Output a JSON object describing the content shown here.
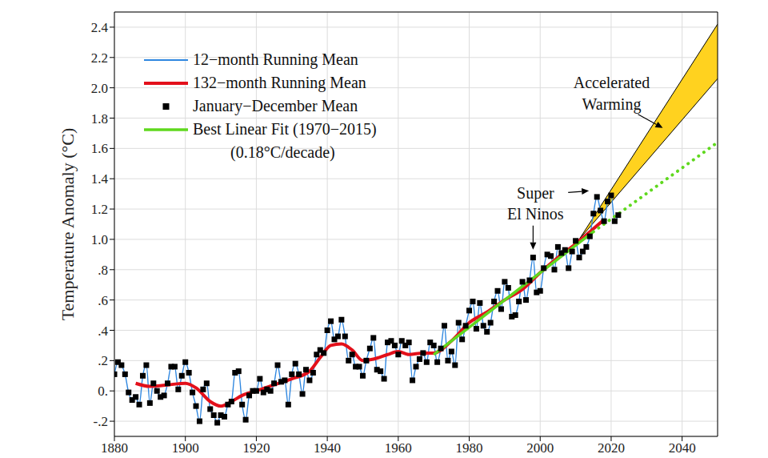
{
  "chart_data": {
    "type": "line",
    "ylabel": "Temperature Anomaly (°C)",
    "xlim": [
      1880,
      2050
    ],
    "xticks": [
      1880,
      1900,
      1920,
      1940,
      1960,
      1980,
      2000,
      2020,
      2040
    ],
    "ylim": [
      -0.3,
      2.5
    ],
    "yticks": [
      {
        "value": -0.2,
        "label": "-.2"
      },
      {
        "value": 0,
        "label": "0."
      },
      {
        "value": 0.2,
        "label": ".2"
      },
      {
        "value": 0.4,
        "label": ".4"
      },
      {
        "value": 0.6,
        "label": ".6"
      },
      {
        "value": 0.8,
        "label": ".8"
      },
      {
        "value": 1.0,
        "label": "1.0"
      },
      1.2,
      1.4,
      1.6,
      1.8,
      {
        "value": 2.0,
        "label": "2.0"
      },
      2.2,
      2.4
    ],
    "grid": true,
    "legend": "upper left",
    "x": [
      1880,
      1881,
      1882,
      1883,
      1884,
      1885,
      1886,
      1887,
      1888,
      1889,
      1890,
      1891,
      1892,
      1893,
      1894,
      1895,
      1896,
      1897,
      1898,
      1899,
      1900,
      1901,
      1902,
      1903,
      1904,
      1905,
      1906,
      1907,
      1908,
      1909,
      1910,
      1911,
      1912,
      1913,
      1914,
      1915,
      1916,
      1917,
      1918,
      1919,
      1920,
      1921,
      1922,
      1923,
      1924,
      1925,
      1926,
      1927,
      1928,
      1929,
      1930,
      1931,
      1932,
      1933,
      1934,
      1935,
      1936,
      1937,
      1938,
      1939,
      1940,
      1941,
      1942,
      1943,
      1944,
      1945,
      1946,
      1947,
      1948,
      1949,
      1950,
      1951,
      1952,
      1953,
      1954,
      1955,
      1956,
      1957,
      1958,
      1959,
      1960,
      1961,
      1962,
      1963,
      1964,
      1965,
      1966,
      1967,
      1968,
      1969,
      1970,
      1971,
      1972,
      1973,
      1974,
      1975,
      1976,
      1977,
      1978,
      1979,
      1980,
      1981,
      1982,
      1983,
      1984,
      1985,
      1986,
      1987,
      1988,
      1989,
      1990,
      1991,
      1992,
      1993,
      1994,
      1995,
      1996,
      1997,
      1998,
      1999,
      2000,
      2001,
      2002,
      2003,
      2004,
      2005,
      2006,
      2007,
      2008,
      2009,
      2010,
      2011,
      2012,
      2013,
      2014,
      2015,
      2016,
      2017,
      2018,
      2019,
      2020,
      2021,
      2022
    ],
    "series": [
      {
        "name": "12−month Running Mean",
        "type": "line",
        "color": "#2f87e0",
        "values": [
          0.11,
          0.19,
          0.17,
          0.11,
          -0.01,
          -0.06,
          -0.04,
          -0.09,
          0.1,
          0.17,
          -0.08,
          0.05,
          0.0,
          -0.04,
          -0.03,
          0.05,
          0.16,
          0.16,
          0.01,
          0.1,
          0.19,
          0.12,
          -0.01,
          -0.1,
          -0.2,
          0.01,
          0.05,
          -0.12,
          -0.16,
          -0.21,
          -0.16,
          -0.17,
          -0.09,
          -0.07,
          0.12,
          0.13,
          -0.09,
          -0.19,
          -0.03,
          0.0,
          0.0,
          0.08,
          -0.01,
          0.01,
          0.0,
          0.05,
          0.17,
          0.06,
          0.07,
          -0.09,
          0.11,
          0.18,
          0.11,
          -0.02,
          0.14,
          0.07,
          0.12,
          0.24,
          0.27,
          0.25,
          0.4,
          0.46,
          0.34,
          0.36,
          0.47,
          0.36,
          0.2,
          0.24,
          0.16,
          0.16,
          0.1,
          0.2,
          0.28,
          0.35,
          0.14,
          0.13,
          0.08,
          0.32,
          0.33,
          0.3,
          0.24,
          0.33,
          0.3,
          0.32,
          0.07,
          0.16,
          0.21,
          0.25,
          0.19,
          0.32,
          0.3,
          0.19,
          0.28,
          0.43,
          0.2,
          0.26,
          0.17,
          0.45,
          0.34,
          0.43,
          0.53,
          0.59,
          0.41,
          0.58,
          0.43,
          0.39,
          0.45,
          0.59,
          0.66,
          0.54,
          0.72,
          0.68,
          0.49,
          0.5,
          0.59,
          0.72,
          0.6,
          0.73,
          0.88,
          0.65,
          0.66,
          0.81,
          0.9,
          0.89,
          0.8,
          0.95,
          0.91,
          0.93,
          0.81,
          0.92,
          0.99,
          0.88,
          0.92,
          0.95,
          1.02,
          1.17,
          1.28,
          1.19,
          1.12,
          1.25,
          1.29,
          1.12,
          1.16
        ]
      },
      {
        "name": "132−month Running Mean",
        "type": "line",
        "color": "#e3101b",
        "x": [
          1886,
          1890,
          1895,
          1900,
          1903,
          1907,
          1910,
          1913,
          1916,
          1920,
          1925,
          1930,
          1935,
          1938,
          1941,
          1944,
          1947,
          1950,
          1953,
          1957,
          1960,
          1963,
          1967,
          1970,
          1975,
          1980,
          1985,
          1990,
          1995,
          2000,
          2005,
          2010,
          2013,
          2016,
          2018
        ],
        "values": [
          0.05,
          0.03,
          0.04,
          0.05,
          0.02,
          -0.07,
          -0.1,
          -0.07,
          -0.03,
          0.0,
          0.04,
          0.08,
          0.13,
          0.22,
          0.3,
          0.31,
          0.27,
          0.2,
          0.21,
          0.24,
          0.26,
          0.24,
          0.25,
          0.25,
          0.33,
          0.45,
          0.52,
          0.6,
          0.67,
          0.78,
          0.88,
          0.97,
          1.03,
          1.09,
          1.13
        ]
      },
      {
        "name": "January−December Mean",
        "type": "scatter",
        "marker": "square",
        "color": "#000000",
        "values": [
          0.11,
          0.19,
          0.17,
          0.11,
          -0.01,
          -0.06,
          -0.04,
          -0.09,
          0.1,
          0.17,
          -0.08,
          0.05,
          0.0,
          -0.04,
          -0.03,
          0.05,
          0.16,
          0.16,
          0.01,
          0.1,
          0.19,
          0.12,
          -0.01,
          -0.1,
          -0.2,
          0.01,
          0.05,
          -0.12,
          -0.16,
          -0.21,
          -0.16,
          -0.17,
          -0.09,
          -0.07,
          0.12,
          0.13,
          -0.09,
          -0.19,
          -0.03,
          0.0,
          0.0,
          0.08,
          -0.01,
          0.01,
          0.0,
          0.05,
          0.17,
          0.06,
          0.07,
          -0.09,
          0.11,
          0.18,
          0.11,
          -0.02,
          0.14,
          0.07,
          0.12,
          0.24,
          0.27,
          0.25,
          0.4,
          0.46,
          0.34,
          0.36,
          0.47,
          0.36,
          0.2,
          0.24,
          0.16,
          0.16,
          0.1,
          0.2,
          0.28,
          0.35,
          0.14,
          0.13,
          0.08,
          0.32,
          0.33,
          0.3,
          0.24,
          0.33,
          0.3,
          0.32,
          0.07,
          0.16,
          0.21,
          0.25,
          0.19,
          0.32,
          0.3,
          0.19,
          0.28,
          0.43,
          0.2,
          0.26,
          0.17,
          0.45,
          0.34,
          0.43,
          0.53,
          0.59,
          0.41,
          0.58,
          0.43,
          0.39,
          0.45,
          0.59,
          0.66,
          0.54,
          0.72,
          0.68,
          0.49,
          0.5,
          0.59,
          0.72,
          0.6,
          0.73,
          0.88,
          0.65,
          0.66,
          0.81,
          0.9,
          0.89,
          0.8,
          0.95,
          0.91,
          0.93,
          0.81,
          0.92,
          0.99,
          0.88,
          0.92,
          0.95,
          1.02,
          1.17,
          1.28,
          1.19,
          1.12,
          1.25,
          1.29,
          1.12,
          1.16
        ]
      },
      {
        "name": "Best Linear Fit (1970−2015)",
        "description": "(0.18°C/decade)",
        "type": "line",
        "color": "#5fd81e",
        "x": [
          1970,
          2015
        ],
        "values": [
          0.24,
          1.05
        ]
      },
      {
        "type": "line",
        "line_style": "dotted",
        "color": "#5fd81e",
        "x": [
          2015,
          2050
        ],
        "values": [
          1.05,
          1.64
        ]
      },
      {
        "type": "band",
        "color": "#ffd21f",
        "x": [
          2011,
          2050
        ],
        "low": [
          1.0,
          2.06
        ],
        "high": [
          1.0,
          2.42
        ]
      }
    ],
    "annotations": [
      {
        "text": [
          "Super",
          "El Ninos"
        ],
        "points": [
          {
            "x": 1998,
            "y": 0.9
          },
          {
            "x": 2016,
            "y": 1.32
          }
        ]
      },
      {
        "text": [
          "Accelerated",
          "Warming"
        ],
        "points": [
          {
            "x": 2035,
            "y": 1.73
          }
        ]
      }
    ]
  }
}
